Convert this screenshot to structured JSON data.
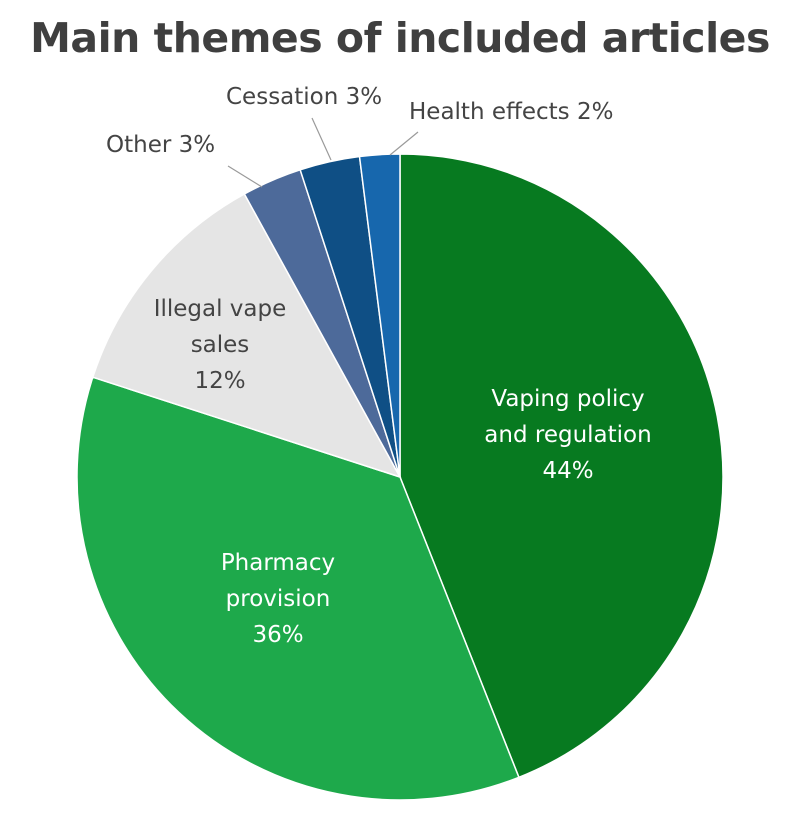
{
  "chart_data": {
    "type": "pie",
    "title": "Main themes of included articles",
    "slices": [
      {
        "label": "Vaping policy and regulation",
        "value": 44,
        "value_label": "44%",
        "color": "#077a20",
        "label_color": "#ffffff"
      },
      {
        "label": "Pharmacy provision",
        "value": 36,
        "value_label": "36%",
        "color": "#1ea94b",
        "label_color": "#ffffff"
      },
      {
        "label": "Illegal vape sales",
        "value": 12,
        "value_label": "12%",
        "color": "#e5e5e5",
        "label_color": "#444444"
      },
      {
        "label": "Other",
        "value": 3,
        "value_label": "3%",
        "color": "#4d6a9a",
        "label_color": "#444444"
      },
      {
        "label": "Cessation",
        "value": 3,
        "value_label": "3%",
        "color": "#0f4f85",
        "label_color": "#444444"
      },
      {
        "label": "Health effects",
        "value": 2,
        "value_label": "2%",
        "color": "#1767ad",
        "label_color": "#444444"
      }
    ],
    "start_angle": "12 o'clock",
    "direction": "clockwise",
    "legend": "none"
  }
}
